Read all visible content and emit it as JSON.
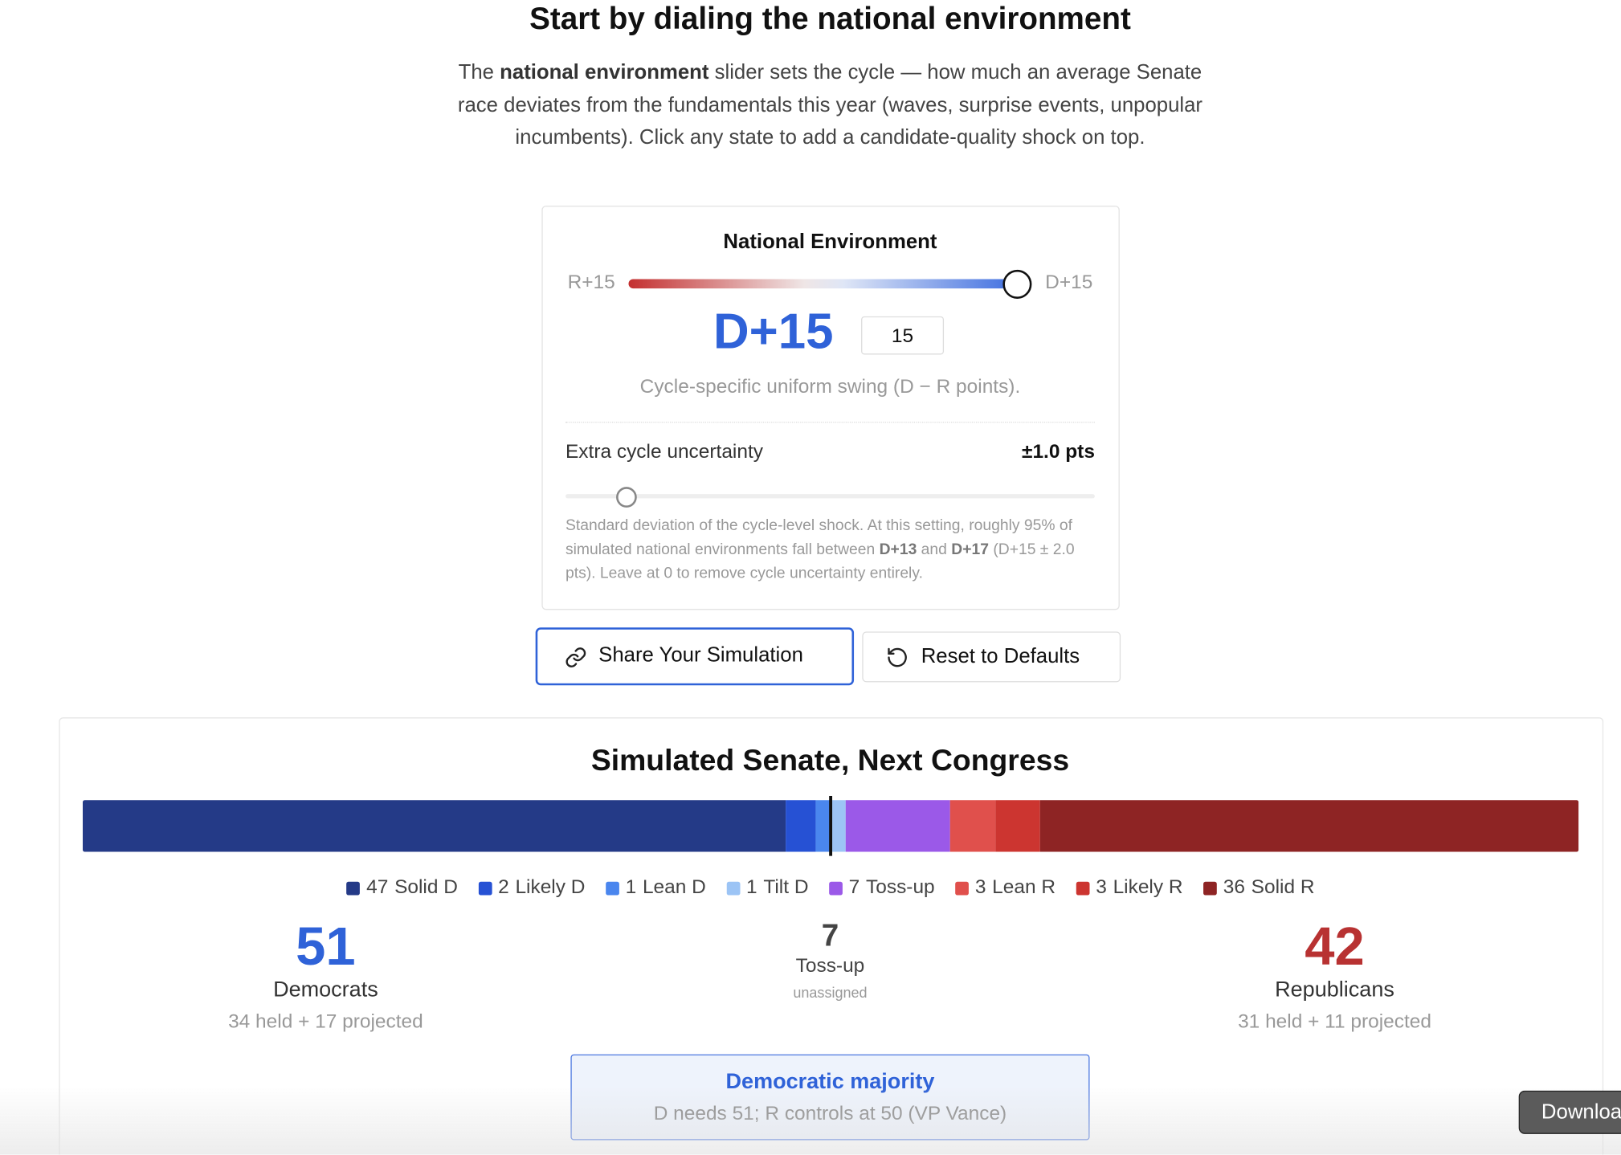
{
  "header": {
    "title": "Start by dialing the national environment",
    "intro": [
      "The ",
      "national environment",
      " slider sets the cycle — how much an average Senate race deviates from the fundamentals this year (waves, surprise events, unpopular incumbents). Click any state to add a candidate-quality shock on top."
    ]
  },
  "environment": {
    "title": "National Environment",
    "left_label": "R+15",
    "right_label": "D+15",
    "display": "D+15",
    "value": 15,
    "caption": "Cycle-specific uniform swing (D − R points)."
  },
  "uncertainty": {
    "label": "Extra cycle uncertainty",
    "display": "±1.0 pts",
    "note": [
      "Standard deviation of the cycle-level shock. At this setting, roughly 95% of simulated national environments fall between ",
      "D+13",
      " and ",
      "D+17",
      " (D+15 ± 2.0 pts). Leave at 0 to remove cycle uncertainty entirely."
    ]
  },
  "buttons": [
    "Share Your Simulation",
    "Reset to Defaults"
  ],
  "senate": {
    "title": "Simulated Senate, Next Congress",
    "seats": [
      {
        "count": 47,
        "label": "Solid D",
        "color": "#243a87"
      },
      {
        "count": 2,
        "label": "Likely D",
        "color": "#2651d4"
      },
      {
        "count": 1,
        "label": "Lean D",
        "color": "#4a86ee"
      },
      {
        "count": 1,
        "label": "Tilt D",
        "color": "#9cc4f5"
      },
      {
        "count": 7,
        "label": "Toss-up",
        "color": "#9b59e8"
      },
      {
        "count": 3,
        "label": "Lean R",
        "color": "#e0504c"
      },
      {
        "count": 3,
        "label": "Likely R",
        "color": "#cc3530"
      },
      {
        "count": 36,
        "label": "Solid R",
        "color": "#8e2424"
      }
    ],
    "summary": {
      "dem": {
        "count": 51,
        "label": "Democrats",
        "detail": "34 held + 17 projected"
      },
      "tossup": {
        "count": 7,
        "label": "Toss-up",
        "detail": "unassigned"
      },
      "rep": {
        "count": 42,
        "label": "Republicans",
        "detail": "31 held + 11 projected"
      }
    },
    "majority": {
      "title": "Democratic majority",
      "detail": "D needs 51; R controls at 50 (VP Vance)"
    }
  },
  "tooltip": "Download"
}
